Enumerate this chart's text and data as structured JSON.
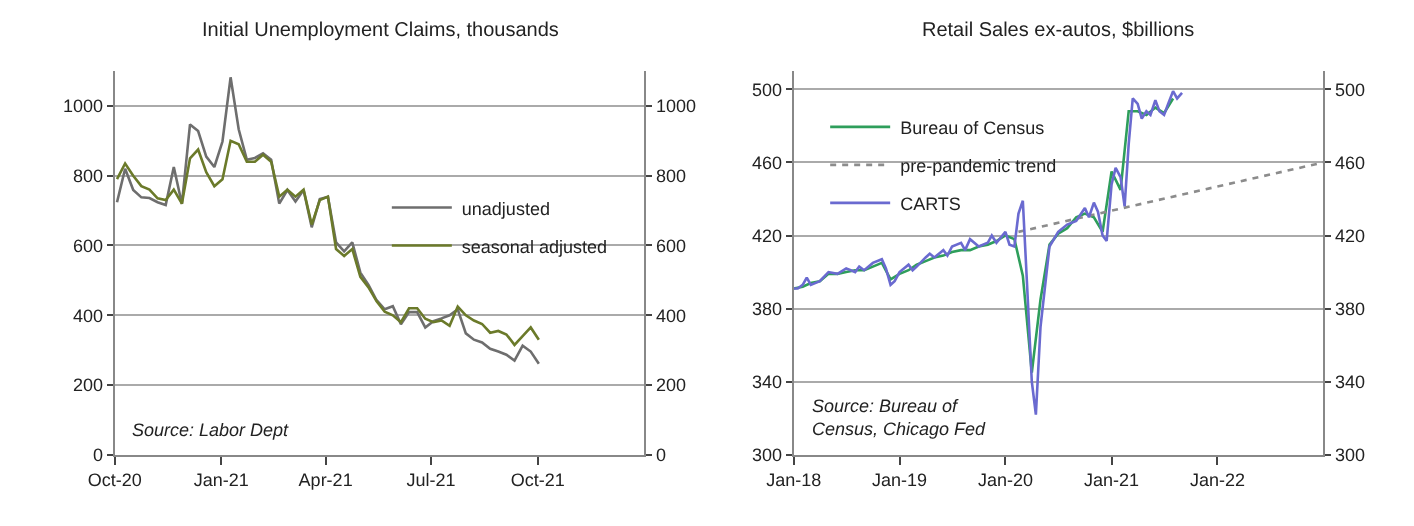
{
  "chart_data": [
    {
      "type": "line",
      "title": "Initial Unemployment Claims, thousands",
      "x": [
        "2020-10-03",
        "2020-10-10",
        "2020-10-17",
        "2020-10-24",
        "2020-10-31",
        "2020-11-07",
        "2020-11-14",
        "2020-11-21",
        "2020-11-28",
        "2020-12-05",
        "2020-12-12",
        "2020-12-19",
        "2020-12-26",
        "2021-01-02",
        "2021-01-09",
        "2021-01-16",
        "2021-01-23",
        "2021-01-30",
        "2021-02-06",
        "2021-02-13",
        "2021-02-20",
        "2021-02-27",
        "2021-03-06",
        "2021-03-13",
        "2021-03-20",
        "2021-03-27",
        "2021-04-03",
        "2021-04-10",
        "2021-04-17",
        "2021-04-24",
        "2021-05-01",
        "2021-05-08",
        "2021-05-15",
        "2021-05-22",
        "2021-05-29",
        "2021-06-05",
        "2021-06-12",
        "2021-06-19",
        "2021-06-26",
        "2021-07-03",
        "2021-07-10",
        "2021-07-17",
        "2021-07-24",
        "2021-07-31",
        "2021-08-07",
        "2021-08-14",
        "2021-08-21",
        "2021-08-28",
        "2021-09-04",
        "2021-09-11",
        "2021-09-18",
        "2021-09-25",
        "2021-10-02"
      ],
      "series": [
        {
          "name": "unadjusted",
          "color": "#6e6e6e",
          "values": [
            724,
            820,
            759,
            738,
            736,
            724,
            716,
            825,
            719,
            947,
            928,
            855,
            825,
            898,
            1082,
            933,
            846,
            851,
            864,
            846,
            720,
            759,
            726,
            759,
            652,
            733,
            739,
            609,
            583,
            609,
            522,
            487,
            443,
            417,
            426,
            374,
            409,
            409,
            365,
            383,
            391,
            400,
            417,
            348,
            330,
            322,
            304,
            296,
            287,
            270,
            313,
            296,
            261
          ]
        },
        {
          "name": "seasonal adjusted",
          "color": "#6b7a2a",
          "values": [
            790,
            835,
            800,
            770,
            760,
            735,
            730,
            760,
            720,
            850,
            875,
            810,
            770,
            790,
            900,
            890,
            840,
            840,
            860,
            840,
            740,
            760,
            740,
            760,
            660,
            730,
            740,
            590,
            570,
            590,
            510,
            480,
            440,
            410,
            400,
            380,
            420,
            420,
            390,
            380,
            385,
            370,
            425,
            400,
            385,
            375,
            350,
            355,
            345,
            315,
            340,
            365,
            330
          ]
        }
      ],
      "xlim": [
        "2020-10-01",
        "2022-01-01"
      ],
      "xticks": [
        {
          "value": "2020-10-01",
          "label": "Oct-20"
        },
        {
          "value": "2021-01-01",
          "label": "Jan-21"
        },
        {
          "value": "2021-04-01",
          "label": "Apr-21"
        },
        {
          "value": "2021-07-01",
          "label": "Jul-21"
        },
        {
          "value": "2021-10-01",
          "label": "Oct-21"
        }
      ],
      "ylim": [
        0,
        1100
      ],
      "yticks": [
        0,
        200,
        400,
        600,
        800,
        1000
      ],
      "y2lim": [
        0,
        1100
      ],
      "y2ticks": [
        0,
        200,
        400,
        600,
        800,
        1000
      ],
      "grid": "y",
      "legend": "right",
      "annotations": [
        "Source: Labor Dept"
      ]
    },
    {
      "type": "line",
      "title": "Retail Sales ex-autos, $billions",
      "x": [
        "2018-01",
        "2018-02",
        "2018-03",
        "2018-04",
        "2018-05",
        "2018-06",
        "2018-07",
        "2018-08",
        "2018-09",
        "2018-10",
        "2018-11",
        "2018-12",
        "2019-01",
        "2019-02",
        "2019-03",
        "2019-04",
        "2019-05",
        "2019-06",
        "2019-07",
        "2019-08",
        "2019-09",
        "2019-10",
        "2019-11",
        "2019-12",
        "2020-01",
        "2020-02",
        "2020-03",
        "2020-04",
        "2020-05",
        "2020-06",
        "2020-07",
        "2020-08",
        "2020-09",
        "2020-10",
        "2020-11",
        "2020-12",
        "2021-01",
        "2021-02",
        "2021-03",
        "2021-04",
        "2021-05",
        "2021-06",
        "2021-07",
        "2021-08"
      ],
      "series": [
        {
          "name": "Bureau of Census",
          "color": "#2e9e5b",
          "values": [
            391,
            392,
            394,
            395,
            399,
            399,
            400,
            401,
            401,
            403,
            405,
            396,
            399,
            401,
            404,
            406,
            408,
            409,
            411,
            412,
            412,
            414,
            415,
            417,
            420,
            418,
            398,
            345,
            385,
            415,
            421,
            424,
            430,
            432,
            430,
            422,
            455,
            445,
            488,
            488,
            486,
            490,
            487,
            495
          ]
        },
        {
          "name": "pre-pandemic trend",
          "type": "line",
          "color": "#8c8c8c",
          "line_style": "dotted",
          "x": [
            "2020-02-15",
            "2023-01-01"
          ],
          "values": [
            422,
            460
          ]
        },
        {
          "name": "CARTS",
          "color": "#6a6ad0",
          "x": [
            "2018-01-01",
            "2018-01-15",
            "2018-02-01",
            "2018-02-15",
            "2018-03-01",
            "2018-04-01",
            "2018-05-01",
            "2018-06-01",
            "2018-07-01",
            "2018-08-01",
            "2018-08-15",
            "2018-09-01",
            "2018-10-01",
            "2018-11-01",
            "2018-11-15",
            "2018-12-01",
            "2018-12-15",
            "2019-01-01",
            "2019-02-01",
            "2019-02-15",
            "2019-03-01",
            "2019-04-01",
            "2019-04-15",
            "2019-05-01",
            "2019-06-01",
            "2019-06-15",
            "2019-07-01",
            "2019-08-01",
            "2019-08-15",
            "2019-09-01",
            "2019-10-01",
            "2019-11-01",
            "2019-11-15",
            "2019-12-01",
            "2020-01-01",
            "2020-01-15",
            "2020-02-01",
            "2020-02-15",
            "2020-03-01",
            "2020-03-15",
            "2020-04-01",
            "2020-04-15",
            "2020-05-01",
            "2020-06-01",
            "2020-07-01",
            "2020-08-01",
            "2020-09-01",
            "2020-10-01",
            "2020-10-15",
            "2020-11-01",
            "2020-11-15",
            "2020-12-01",
            "2020-12-15",
            "2021-01-01",
            "2021-01-15",
            "2021-02-01",
            "2021-02-15",
            "2021-03-01",
            "2021-03-15",
            "2021-04-01",
            "2021-04-15",
            "2021-05-01",
            "2021-05-15",
            "2021-06-01",
            "2021-06-15",
            "2021-07-01",
            "2021-07-15",
            "2021-08-01",
            "2021-08-15",
            "2021-09-01"
          ],
          "values": [
            391,
            391,
            393,
            397,
            393,
            395,
            400,
            399,
            402,
            400,
            403,
            401,
            405,
            407,
            402,
            393,
            395,
            400,
            404,
            401,
            403,
            408,
            410,
            408,
            412,
            409,
            414,
            416,
            412,
            418,
            414,
            416,
            420,
            416,
            422,
            415,
            414,
            432,
            439,
            395,
            340,
            322,
            370,
            414,
            422,
            426,
            428,
            435,
            430,
            438,
            433,
            420,
            417,
            448,
            457,
            452,
            436,
            470,
            495,
            492,
            484,
            488,
            486,
            494,
            488,
            486,
            492,
            499,
            495,
            498
          ]
        }
      ],
      "xlim": [
        "2018-01-01",
        "2023-01-01"
      ],
      "xticks": [
        {
          "value": "2018-01-01",
          "label": "Jan-18"
        },
        {
          "value": "2019-01-01",
          "label": "Jan-19"
        },
        {
          "value": "2020-01-01",
          "label": "Jan-20"
        },
        {
          "value": "2021-01-01",
          "label": "Jan-21"
        },
        {
          "value": "2022-01-01",
          "label": "Jan-22"
        }
      ],
      "ylim": [
        300,
        510
      ],
      "yticks": [
        300,
        340,
        380,
        420,
        460,
        500
      ],
      "y2lim": [
        300,
        510
      ],
      "y2ticks": [
        300,
        340,
        380,
        420,
        460,
        500
      ],
      "grid": "y",
      "legend": "top left",
      "annotations": [
        "Source: Bureau of\nCensus, Chicago Fed"
      ]
    }
  ]
}
